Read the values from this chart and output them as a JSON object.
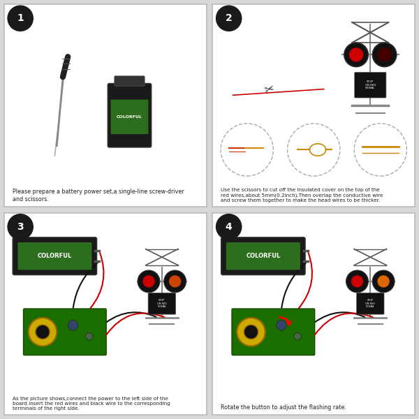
{
  "outer_bg": "#d8d8d8",
  "panel_bg": "#ffffff",
  "panel_edge": "#bbbbbb",
  "step_circle_bg": "#1a1a1a",
  "step_circle_fg": "#ffffff",
  "caption_color": "#222222",
  "panel1_caption": "Please prepare a battery power set,a single-line screw-driver\nand scissors.",
  "panel2_caption": "Use the scissors to cut off the insulated cover on the top of the\nred wires,about 5mm(0.2inch).Then overlap the conductive wire\nand screw them together to make the head wires to be thicker.",
  "panel3_caption": "As the picture shows,connect the power to the left side of the\nboard.Insert the red wires and black wire to the corresponding\nterminals of the right side.",
  "panel4_caption": "Rotate the button to adjust the flashing rate.",
  "steps": [
    "1",
    "2",
    "3",
    "4"
  ],
  "battery_green": "#2d6e1e",
  "battery_black": "#1a1a1a",
  "pcb_green": "#1a6e00",
  "wire_red": "#cc0000",
  "wire_black": "#111111",
  "signal_gray": "#888888",
  "light_red": "#cc0000",
  "light_orange": "#dd6600",
  "sign_black": "#111111",
  "coil_yellow": "#ccaa00",
  "coil_black": "#111111"
}
